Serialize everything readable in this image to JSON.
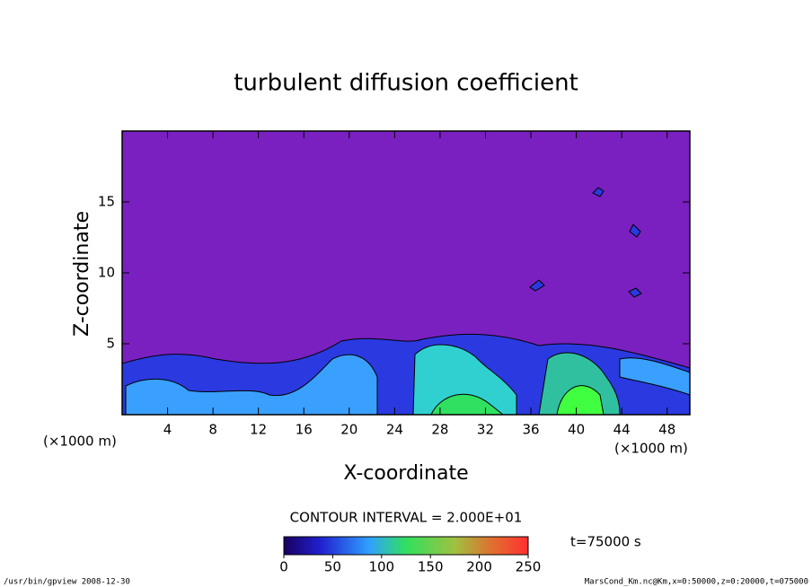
{
  "chart_data": {
    "type": "contour",
    "title": "turbulent diffusion coefficient",
    "xlabel": "X-coordinate",
    "ylabel": "Z-coordinate",
    "xunit": "(×1000 m)",
    "yunit": "(×1000 m)",
    "xlim": [
      0,
      50
    ],
    "xticks": [
      4,
      8,
      12,
      16,
      20,
      24,
      28,
      32,
      36,
      40,
      44,
      48
    ],
    "ylim": [
      0,
      20
    ],
    "yticks": [
      5,
      10,
      15
    ],
    "contour_interval": "CONTOUR INTERVAL = 2.000E+01",
    "time_label": "t=75000 s",
    "colorbar": {
      "lim": [
        0,
        250
      ],
      "ticks": [
        0,
        50,
        100,
        150,
        200,
        250
      ]
    },
    "footer_left": "/usr/bin/gpview  2008-12-30",
    "footer_right": "MarsCond_Km.nc@Km,x=0:50000,z=0:20000,t=075000"
  }
}
